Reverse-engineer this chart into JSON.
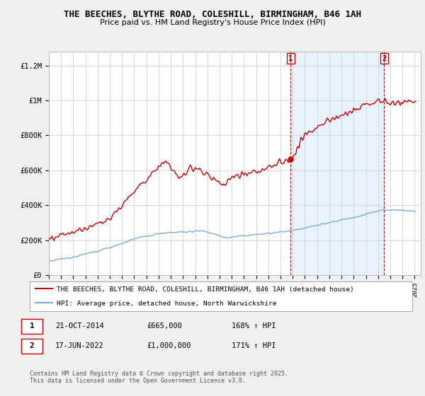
{
  "title": "THE BEECHES, BLYTHE ROAD, COLESHILL, BIRMINGHAM, B46 1AH",
  "subtitle": "Price paid vs. HM Land Registry's House Price Index (HPI)",
  "ylabel_ticks": [
    "£0",
    "£200K",
    "£400K",
    "£600K",
    "£800K",
    "£1M",
    "£1.2M"
  ],
  "ytick_values": [
    0,
    200000,
    400000,
    600000,
    800000,
    1000000,
    1200000
  ],
  "ylim": [
    0,
    1280000
  ],
  "red_line_color": "#cc0000",
  "blue_line_color": "#7aadd4",
  "shaded_color": "#ddeeff",
  "marker1_year": 2014.82,
  "marker2_year": 2022.46,
  "marker1_label": "1",
  "marker2_label": "2",
  "marker1_price": 665000,
  "marker2_price": 1000000,
  "legend_label_red": "THE BEECHES, BLYTHE ROAD, COLESHILL, BIRMINGHAM, B46 1AH (detached house)",
  "legend_label_blue": "HPI: Average price, detached house, North Warwickshire",
  "ann1_date": "21-OCT-2014",
  "ann1_price": "£665,000",
  "ann1_hpi": "168% ↑ HPI",
  "ann2_date": "17-JUN-2022",
  "ann2_price": "£1,000,000",
  "ann2_hpi": "171% ↑ HPI",
  "footer": "Contains HM Land Registry data © Crown copyright and database right 2025.\nThis data is licensed under the Open Government Licence v3.0.",
  "background_color": "#f0f0f0",
  "plot_bg_color": "#ffffff",
  "title_font": "DejaVu Sans",
  "mono_font": "DejaVu Sans Mono"
}
